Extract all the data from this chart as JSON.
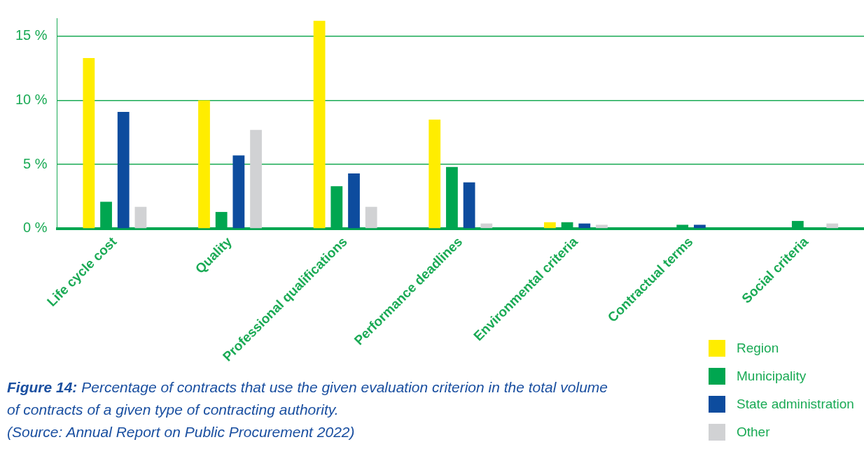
{
  "chart_data": {
    "type": "bar",
    "title": "Figure 14:",
    "subtitle": "Percentage of contracts that use the given evaluation criterion in the total volume of contracts of a given type of contracting authority.",
    "annotations": [
      "(Source: Annual Report on Public Procurement 2022)"
    ],
    "categories": [
      "Life cycle cost",
      "Quality",
      "Professional qualifications",
      "Performance deadlines",
      "Environmental criteria",
      "Contractual terms",
      "Social criteria"
    ],
    "series": [
      {
        "name": "Region",
        "color": "#ffed00",
        "values": [
          13.3,
          10,
          16.2,
          8.5,
          0.5,
          0,
          0
        ]
      },
      {
        "name": "Municipality",
        "color": "#00a650",
        "values": [
          2.1,
          1.3,
          3.3,
          4.8,
          0.5,
          0.3,
          0.6
        ]
      },
      {
        "name": "State administration",
        "color": "#0d4c9e",
        "values": [
          9.1,
          5.7,
          4.3,
          3.6,
          0.4,
          0.3,
          0
        ]
      },
      {
        "name": "Other",
        "color": "#d1d2d4",
        "values": [
          1.7,
          7.7,
          1.7,
          0.4,
          0.3,
          0,
          0.4
        ]
      }
    ],
    "ylim": [
      0,
      16.4
    ],
    "yticks": [
      {
        "value": 0,
        "label": "0 %"
      },
      {
        "value": 5,
        "label": "5 %"
      },
      {
        "value": 10,
        "label": "10 %"
      },
      {
        "value": 15,
        "label": "15 %"
      }
    ],
    "grid": "y",
    "legend": "bottom right"
  }
}
